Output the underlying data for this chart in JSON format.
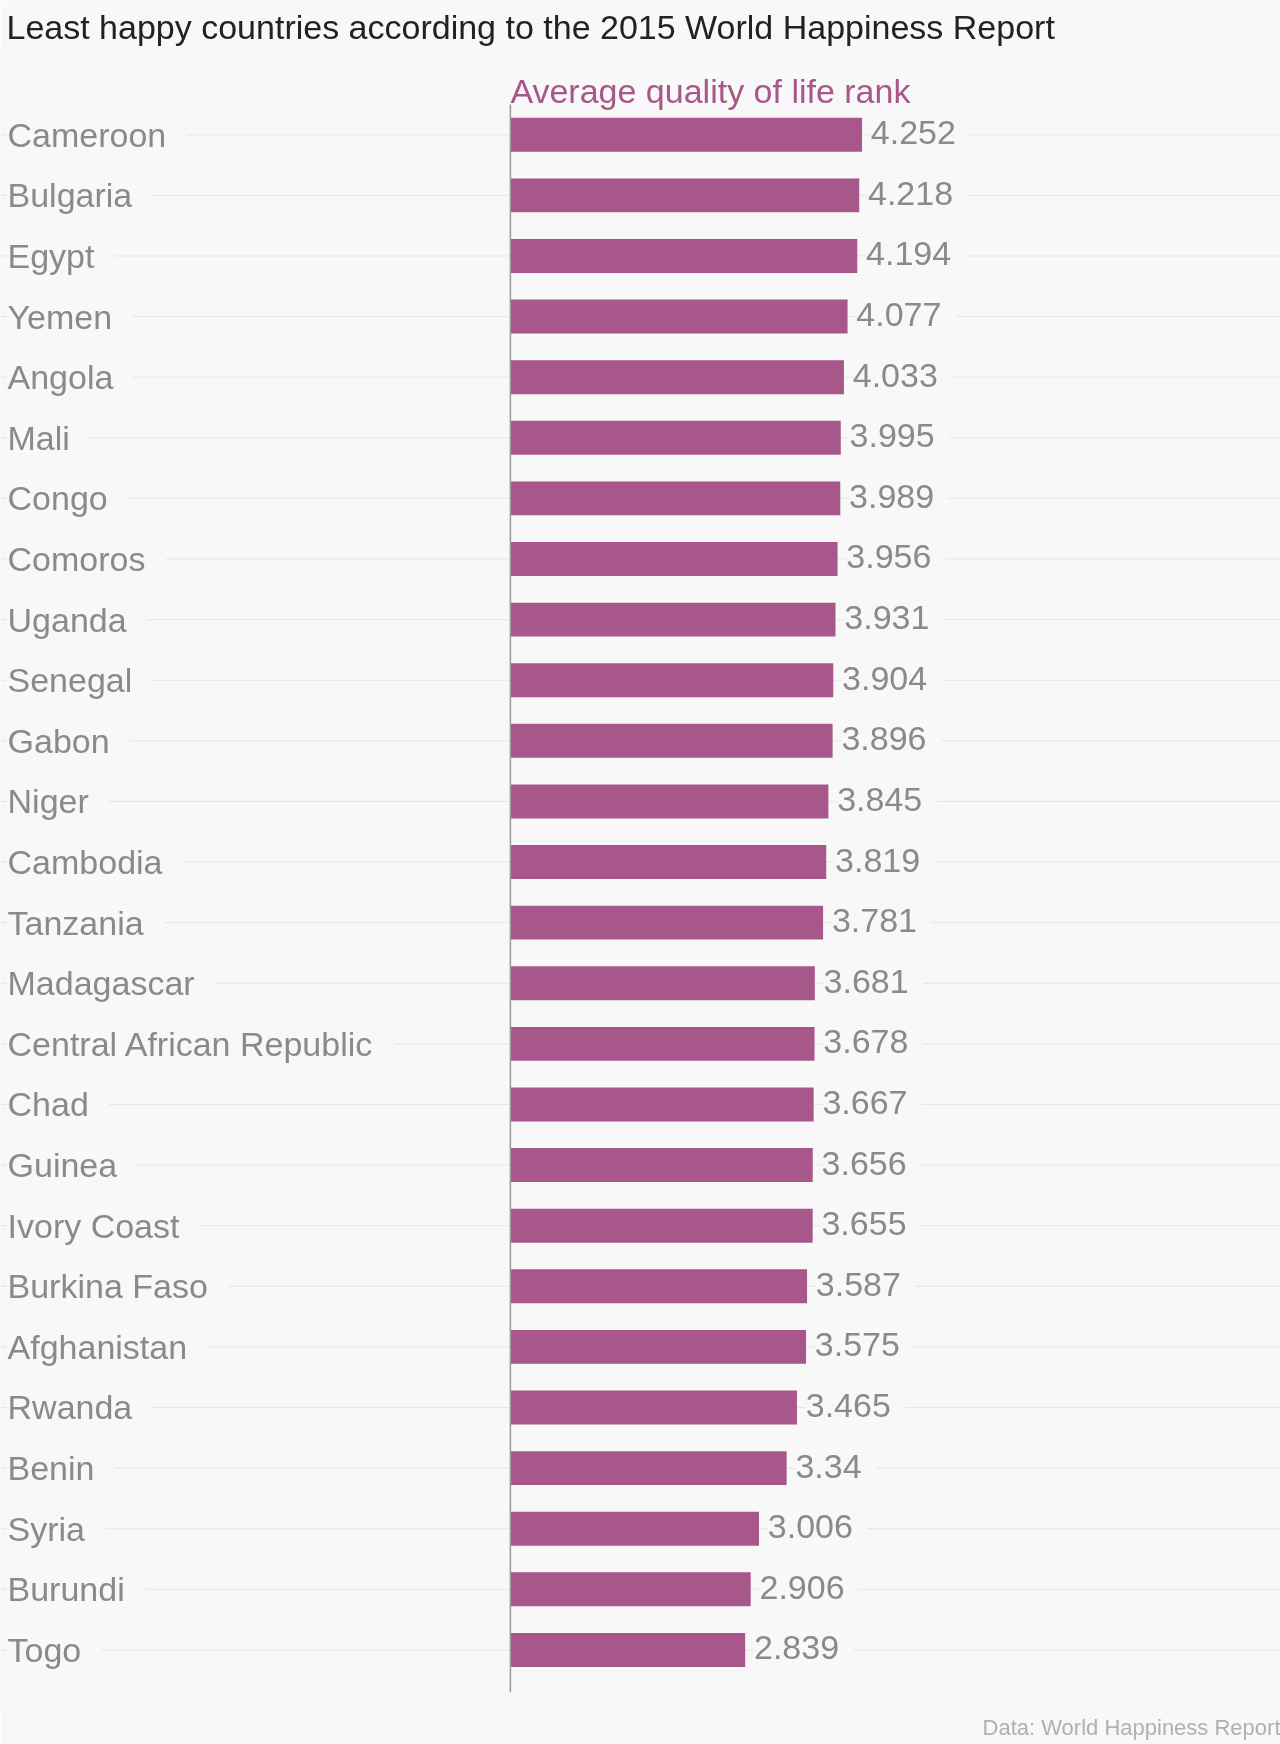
{
  "chart_data": {
    "type": "bar",
    "orientation": "horizontal",
    "title": "Least happy countries according to the 2015 World Happiness Report",
    "xlabel": "Average quality of life rank",
    "categories": [
      "Cameroon",
      "Bulgaria",
      "Egypt",
      "Yemen",
      "Angola",
      "Mali",
      "Congo",
      "Comoros",
      "Uganda",
      "Senegal",
      "Gabon",
      "Niger",
      "Cambodia",
      "Tanzania",
      "Madagascar",
      "Central African Republic",
      "Chad",
      "Guinea",
      "Ivory Coast",
      "Burkina Faso",
      "Afghanistan",
      "Rwanda",
      "Benin",
      "Syria",
      "Burundi",
      "Togo"
    ],
    "values": [
      4.252,
      4.218,
      4.194,
      4.077,
      4.033,
      3.995,
      3.989,
      3.956,
      3.931,
      3.904,
      3.896,
      3.845,
      3.819,
      3.781,
      3.681,
      3.678,
      3.667,
      3.656,
      3.655,
      3.587,
      3.575,
      3.465,
      3.34,
      3.006,
      2.906,
      2.839
    ],
    "color": "#a8578a",
    "data_labels": true,
    "grid": "y",
    "annotations": [
      "Data: World Happiness Report"
    ]
  }
}
